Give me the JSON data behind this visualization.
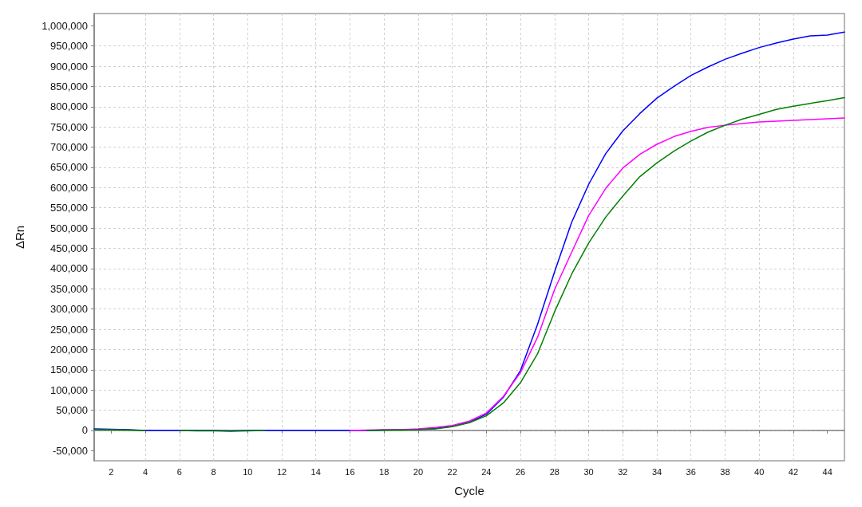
{
  "chart_data": {
    "type": "line",
    "xlabel": "Cycle",
    "ylabel": "ΔRn",
    "x": [
      1,
      2,
      3,
      4,
      5,
      6,
      7,
      8,
      9,
      10,
      11,
      12,
      13,
      14,
      15,
      16,
      17,
      18,
      19,
      20,
      21,
      22,
      23,
      24,
      25,
      26,
      27,
      28,
      29,
      30,
      31,
      32,
      33,
      34,
      35,
      36,
      37,
      38,
      39,
      40,
      41,
      42,
      43,
      44,
      45
    ],
    "series": [
      {
        "color": "#0000ff",
        "values": [
          4000,
          3000,
          2000,
          0,
          0,
          0,
          0,
          0,
          -1000,
          0,
          0,
          0,
          0,
          0,
          0,
          0,
          0,
          1000,
          2000,
          3000,
          5000,
          10000,
          20000,
          40000,
          82000,
          148000,
          262000,
          392000,
          514000,
          608000,
          684000,
          740000,
          783000,
          821000,
          850000,
          877000,
          898000,
          917000,
          932000,
          946000,
          957000,
          967000,
          975000,
          977000,
          984000
        ]
      },
      {
        "color": "#ff00ff",
        "values": [
          null,
          null,
          null,
          null,
          null,
          null,
          null,
          null,
          null,
          null,
          null,
          null,
          null,
          null,
          null,
          0,
          1000,
          2000,
          2000,
          4000,
          7000,
          12000,
          23000,
          43000,
          84000,
          143000,
          230000,
          348000,
          440000,
          531000,
          598000,
          648000,
          682000,
          707000,
          726000,
          739000,
          749000,
          754000,
          758000,
          762000,
          764000,
          766000,
          768000,
          770000,
          772000
        ]
      },
      {
        "color": "#008000",
        "values": [
          2000,
          2000,
          1000,
          0,
          null,
          0,
          -1000,
          -1000,
          -2000,
          -1000,
          0,
          null,
          null,
          null,
          null,
          null,
          0,
          1000,
          1000,
          2000,
          4000,
          9000,
          19000,
          36000,
          68000,
          118000,
          189000,
          293000,
          386000,
          463000,
          527000,
          579000,
          627000,
          661000,
          690000,
          715000,
          737000,
          754000,
          769000,
          781000,
          793000,
          801000,
          808000,
          815000,
          822000
        ]
      }
    ],
    "xlim": [
      1,
      45
    ],
    "xticks": [
      2,
      4,
      6,
      8,
      10,
      12,
      14,
      16,
      18,
      20,
      22,
      24,
      26,
      28,
      30,
      32,
      34,
      36,
      38,
      40,
      42,
      44
    ],
    "ylim": [
      -75000,
      1030000
    ],
    "yticks": [
      {
        "value": -50000,
        "label": "-50,000"
      },
      0,
      {
        "value": 50000,
        "label": "50,000"
      },
      {
        "value": 100000,
        "label": "100,000"
      },
      {
        "value": 150000,
        "label": "150,000"
      },
      {
        "value": 200000,
        "label": "200,000"
      },
      {
        "value": 250000,
        "label": "250,000"
      },
      {
        "value": 300000,
        "label": "300,000"
      },
      {
        "value": 350000,
        "label": "350,000"
      },
      {
        "value": 400000,
        "label": "400,000"
      },
      {
        "value": 450000,
        "label": "450,000"
      },
      {
        "value": 500000,
        "label": "500,000"
      },
      {
        "value": 550000,
        "label": "550,000"
      },
      {
        "value": 600000,
        "label": "600,000"
      },
      {
        "value": 650000,
        "label": "650,000"
      },
      {
        "value": 700000,
        "label": "700,000"
      },
      {
        "value": 750000,
        "label": "750,000"
      },
      {
        "value": 800000,
        "label": "800,000"
      },
      {
        "value": 850000,
        "label": "850,000"
      },
      {
        "value": 900000,
        "label": "900,000"
      },
      {
        "value": 950000,
        "label": "950,000"
      },
      {
        "value": 1000000,
        "label": "1,000,000"
      }
    ],
    "grid": true,
    "marker": "none",
    "line_style": "solid"
  }
}
